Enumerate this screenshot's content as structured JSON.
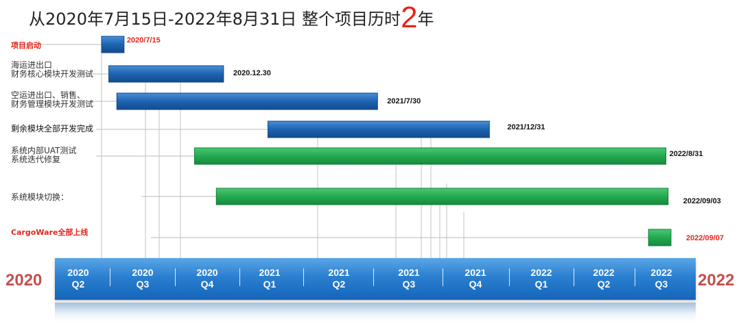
{
  "title": {
    "text": "从2020年7月15日-2022年8月31日 整个项目历时",
    "highlight": "2",
    "suffix": "年"
  },
  "chart_data": {
    "type": "gantt",
    "tasks": [
      {
        "label": "项目启动",
        "start": "2020-07-15",
        "end": "2020-08-15",
        "end_label": "2020/7/15",
        "color": "blue",
        "label_style": "red"
      },
      {
        "label": "海运进出口\n财务核心模块开发测试",
        "start": "2020-07-25",
        "end": "2020-12-30",
        "end_label": "2020.12.30",
        "color": "blue",
        "label_style": "normal"
      },
      {
        "label": "空运进出口、销售、\n财务管理模块开发测试",
        "start": "2020-08-05",
        "end": "2021-07-30",
        "end_label": "2021/7/30",
        "color": "blue",
        "label_style": "normal"
      },
      {
        "label": "剩余模块全部开发完成",
        "start": "2021-03-01",
        "end": "2021-12-31",
        "end_label": "2021/12/31",
        "color": "blue",
        "label_style": "dark"
      },
      {
        "label": "系统内部UAT测试\n系统迭代修复",
        "start": "2020-11-20",
        "end": "2022-08-31",
        "end_label": "2022/8/31",
        "color": "green",
        "label_style": "normal"
      },
      {
        "label": "系统模块切换：",
        "start": "2020-12-20",
        "end": "2022-09-03",
        "end_label": "2022/09/03",
        "color": "green",
        "label_style": "normal"
      },
      {
        "label": "CargoWare全部上线",
        "start": "2022-08-07",
        "end": "2022-09-07",
        "end_label": "2022/09/07",
        "color": "green",
        "label_style": "red"
      }
    ],
    "quarters": [
      {
        "year": "2020",
        "q": "Q2"
      },
      {
        "year": "2020",
        "q": "Q3"
      },
      {
        "year": "2020",
        "q": "Q4"
      },
      {
        "year": "2021",
        "q": "Q1"
      },
      {
        "year": "2021",
        "q": "Q2"
      },
      {
        "year": "2021",
        "q": "Q3"
      },
      {
        "year": "2021",
        "q": "Q4"
      },
      {
        "year": "2022",
        "q": "Q1"
      },
      {
        "year": "2022",
        "q": "Q2"
      },
      {
        "year": "2022",
        "q": "Q3"
      }
    ],
    "start_year": "2020",
    "end_year": "2022",
    "colors": {
      "blue": "#1e63b0",
      "green": "#22a94f",
      "red": "#e8241c",
      "year": "#c0504d"
    }
  }
}
